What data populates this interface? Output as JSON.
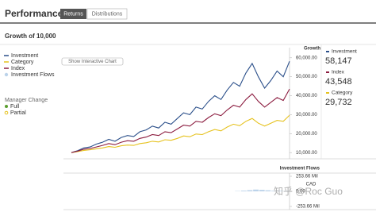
{
  "header": {
    "title": "Performance",
    "tabs": [
      "Returns",
      "Distributions"
    ]
  },
  "subtitle": "Growth of 10,000",
  "legend_extra": {
    "manager_change": "Manager Change",
    "full": "Full",
    "partial": "Partial"
  },
  "button": "Show Interactive Chart",
  "growth_panel": {
    "values": [
      "58,147",
      "43,548",
      "29,732"
    ]
  },
  "watermark": "知乎 @Roc Guo",
  "chart_data": [
    {
      "type": "line",
      "y_label": "Growth",
      "categories": [
        null,
        null,
        null,
        null,
        null,
        null,
        null,
        null,
        null,
        null,
        null,
        null,
        null,
        null,
        null,
        null,
        null,
        null,
        null,
        null,
        null,
        null,
        null,
        null,
        null,
        null,
        null,
        null,
        null,
        null,
        null,
        null,
        null,
        null,
        null,
        null
      ],
      "series": [
        {
          "name": "Investment",
          "color": "#2b4f8a",
          "values": [
            10000,
            11000,
            12500,
            13000,
            14500,
            15500,
            17000,
            16000,
            18000,
            19000,
            18500,
            21000,
            22000,
            24000,
            23000,
            26000,
            25000,
            28000,
            31000,
            30000,
            34000,
            33000,
            37000,
            40000,
            38000,
            43000,
            47000,
            45000,
            52000,
            57000,
            50000,
            44000,
            48000,
            53000,
            50000,
            58147
          ]
        },
        {
          "name": "Category",
          "color": "#e6c21e",
          "values": [
            10000,
            10500,
            11200,
            11500,
            12000,
            12500,
            13200,
            12800,
            13600,
            14000,
            13800,
            14800,
            15200,
            16000,
            15600,
            16800,
            16500,
            17500,
            18800,
            18400,
            19800,
            19500,
            21000,
            22200,
            21500,
            23500,
            25000,
            24200,
            26500,
            28000,
            25500,
            24000,
            25500,
            27000,
            26500,
            29732
          ]
        },
        {
          "name": "Index",
          "color": "#8c1d40",
          "values": [
            10000,
            10800,
            11800,
            12200,
            13000,
            13800,
            14800,
            14200,
            15500,
            16300,
            16000,
            17500,
            18200,
            19500,
            19000,
            21000,
            20500,
            22500,
            24500,
            24000,
            26500,
            26000,
            28500,
            30500,
            29500,
            32500,
            35000,
            34000,
            38000,
            41000,
            37000,
            34000,
            36500,
            39000,
            37500,
            43548
          ]
        }
      ],
      "ylim": [
        8000,
        62000
      ],
      "yticks": [
        {
          "value": 60000,
          "label": "60,000.00"
        },
        {
          "value": 50000,
          "label": "50,000.00"
        },
        {
          "value": 40000,
          "label": "40,000.00"
        },
        {
          "value": 30000,
          "label": "30,000.00"
        },
        {
          "value": 20000,
          "label": "20,000.00"
        },
        {
          "value": 10000,
          "label": "10,000.00"
        }
      ],
      "grid": false
    },
    {
      "type": "bar",
      "title": "Investment Flows",
      "y_unit": "CAD",
      "categories": [
        null,
        null,
        null,
        null,
        null,
        null,
        null,
        null,
        null,
        null,
        null,
        null,
        null,
        null,
        null,
        null,
        null,
        null,
        null,
        null,
        null,
        null,
        null,
        null,
        null,
        null,
        null,
        null,
        null,
        null,
        null,
        null,
        null,
        null,
        null,
        null
      ],
      "series": [
        {
          "name": "Investment Flows",
          "color": "#bcd3ea",
          "values": [
            0,
            0,
            0,
            0,
            0,
            0,
            0,
            0,
            0,
            0,
            0,
            0,
            0,
            0,
            0,
            0,
            0,
            0,
            0,
            0,
            0,
            0,
            0,
            0,
            0,
            0,
            0,
            5,
            12,
            20,
            30,
            25,
            18,
            10,
            8,
            6
          ]
        }
      ],
      "ylim": [
        -253.66,
        253.66
      ],
      "yticks": [
        {
          "value": 253.66,
          "label": "253.66 Mil"
        },
        {
          "value": 0,
          "label": "0.00"
        },
        {
          "value": -253.66,
          "label": "-253.66 Mil"
        }
      ],
      "grid": false
    }
  ]
}
